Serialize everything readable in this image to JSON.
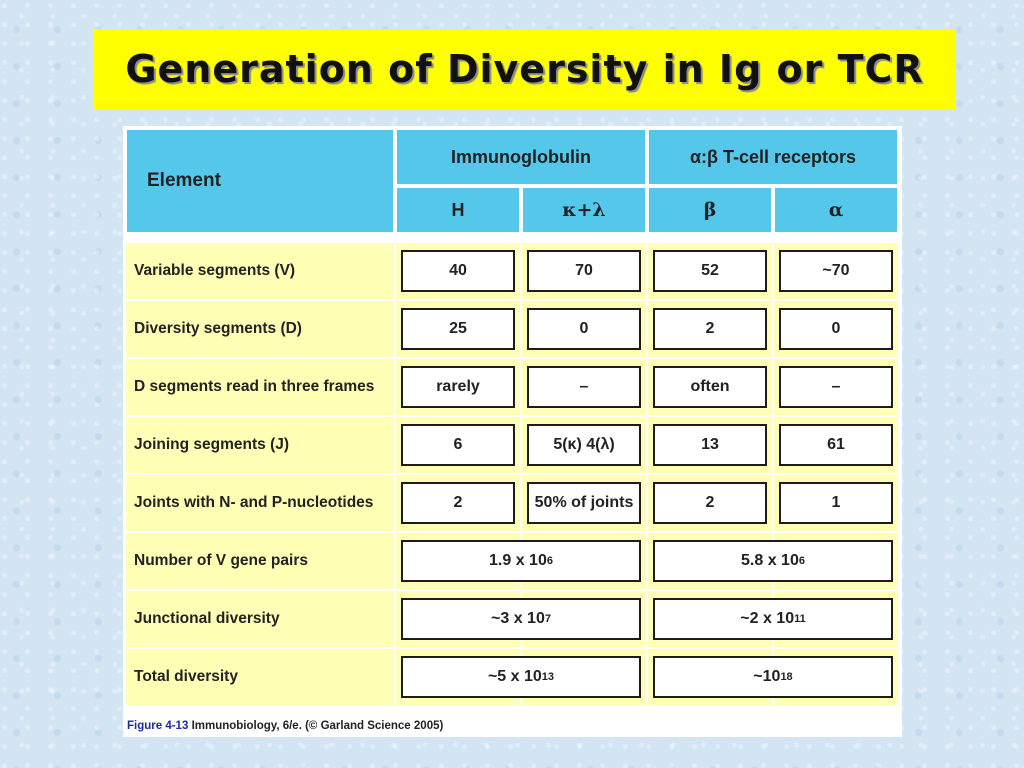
{
  "title": "Generation of Diversity in Ig or TCR",
  "table": {
    "element_header": "Element",
    "group_headers": [
      "Immunoglobulin",
      "α:β T-cell receptors"
    ],
    "sub_headers": [
      "H",
      "κ+λ",
      "β",
      "α"
    ],
    "rows": [
      {
        "label": "Variable segments (V)",
        "cells": [
          "40",
          "70",
          "52",
          "~70"
        ]
      },
      {
        "label": "Diversity segments (D)",
        "cells": [
          "25",
          "0",
          "2",
          "0"
        ]
      },
      {
        "label": "D segments read in three frames",
        "cells": [
          "rarely",
          "–",
          "often",
          "–"
        ]
      },
      {
        "label": "Joining segments (J)",
        "cells": [
          "6",
          "5(κ) 4(λ)",
          "13",
          "61"
        ]
      },
      {
        "label": "Joints with N- and P-nucleotides",
        "cells": [
          "2",
          "50% of joints",
          "2",
          "1"
        ]
      },
      {
        "label": "Number of V gene pairs",
        "ig": {
          "base": "1.9 x 10",
          "exp": "6"
        },
        "tcr": {
          "base": "5.8 x 10",
          "exp": "6"
        }
      },
      {
        "label": "Junctional diversity",
        "ig": {
          "base": "~3 x 10",
          "exp": "7"
        },
        "tcr": {
          "base": "~2 x 10",
          "exp": "11"
        }
      },
      {
        "label": "Total diversity",
        "ig": {
          "base": "~5 x 10",
          "exp": "13"
        },
        "tcr": {
          "base": "~10",
          "exp": "18"
        }
      }
    ]
  },
  "caption": {
    "figure": "Figure 4-13",
    "source": "Immunobiology, 6/e. (© Garland Science 2005)"
  },
  "colors": {
    "title_bg": "#ffff00",
    "header_bg": "#55c7ea",
    "row_bg": "#ffffb6"
  }
}
